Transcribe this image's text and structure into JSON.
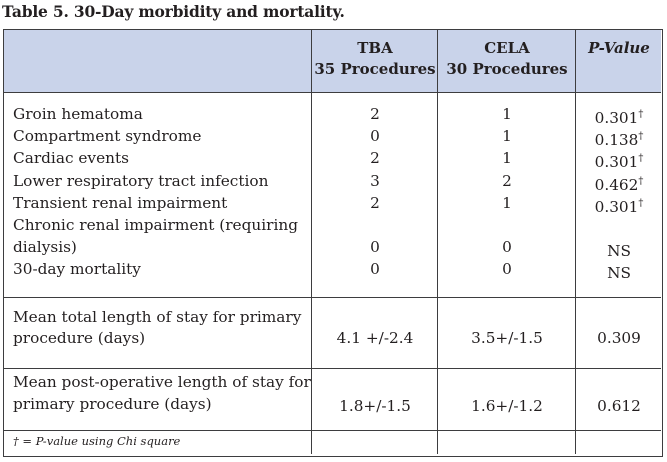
{
  "title": "Table 5. 30-Day morbidity and mortality.",
  "header": {
    "col1": {
      "name": "TBA",
      "sub": "35 Procedures"
    },
    "col2": {
      "name": "CELA",
      "sub": "30 Procedures"
    },
    "col3": {
      "name": "P-Value"
    }
  },
  "rows": [
    {
      "label": "Groin hematoma",
      "tba": "2",
      "cela": "1",
      "p": "0.301",
      "dagger": "†"
    },
    {
      "label": "Compartment syndrome",
      "tba": "0",
      "cela": "1",
      "p": "0.138",
      "dagger": "†"
    },
    {
      "label": "Cardiac events",
      "tba": "2",
      "cela": "1",
      "p": "0.301",
      "dagger": "†"
    },
    {
      "label": "Lower respiratory tract infection",
      "tba": "3",
      "cela": "2",
      "p": "0.462",
      "dagger": "†"
    },
    {
      "label": "Transient renal impairment",
      "tba": "2",
      "cela": "1",
      "p": "0.301",
      "dagger": "†"
    },
    {
      "label": "Chronic renal impairment (requiring",
      "tba": "",
      "cela": "",
      "p": "",
      "dagger": ""
    },
    {
      "label": "dialysis)",
      "tba": "0",
      "cela": "0",
      "p": "NS",
      "dagger": ""
    },
    {
      "label": "30-day mortality",
      "tba": "0",
      "cela": "0",
      "p": "NS",
      "dagger": ""
    }
  ],
  "stay_total": {
    "label1": "Mean total length of stay for primary",
    "label2": "procedure (days)",
    "tba": "4.1 +/-2.4",
    "cela": "3.5+/-1.5",
    "p": "0.309"
  },
  "stay_postop": {
    "label1": "Mean post-operative length of stay for",
    "label2": "primary procedure (days)",
    "tba": "1.8+/-1.5",
    "cela": "1.6+/-1.2",
    "p": "0.612"
  },
  "footnote": "† = P-value using Chi square"
}
